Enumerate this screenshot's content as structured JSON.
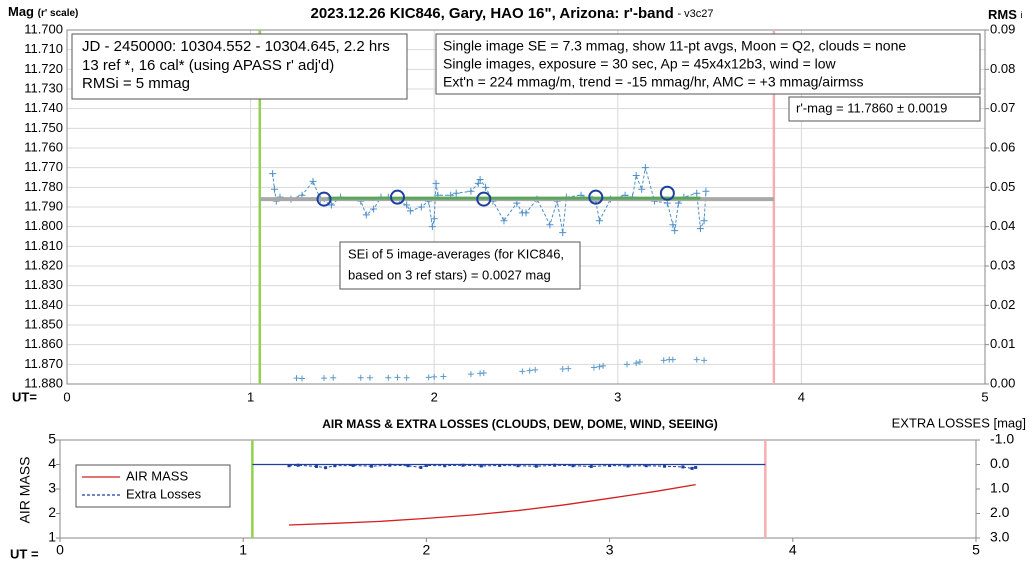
{
  "chart_data": [
    {
      "type": "line",
      "title": "2023.12.26 KIC846, Gary, HAO 16\", Arizona: r'-band",
      "subtitle": "- v3c27",
      "ylabel": "Mag",
      "ylabel_note": "(r' scale)",
      "y2label": "RMS",
      "y2label_sub": "i",
      "xlabel": "UT=",
      "xlim": [
        0,
        5
      ],
      "xticks": [
        0,
        1,
        2,
        3,
        4,
        5
      ],
      "ylim": [
        11.88,
        11.7
      ],
      "yticks": [
        {
          "value": 11.7,
          "label": "11.700"
        },
        {
          "value": 11.71,
          "label": "11.710"
        },
        {
          "value": 11.72,
          "label": "11.720"
        },
        {
          "value": 11.73,
          "label": "11.730"
        },
        {
          "value": 11.74,
          "label": "11.740"
        },
        {
          "value": 11.75,
          "label": "11.750"
        },
        {
          "value": 11.76,
          "label": "11.760"
        },
        {
          "value": 11.77,
          "label": "11.770"
        },
        {
          "value": 11.78,
          "label": "11.780"
        },
        {
          "value": 11.79,
          "label": "11.790"
        },
        {
          "value": 11.8,
          "label": "11.800"
        },
        {
          "value": 11.81,
          "label": "11.810"
        },
        {
          "value": 11.82,
          "label": "11.820"
        },
        {
          "value": 11.83,
          "label": "11.830"
        },
        {
          "value": 11.84,
          "label": "11.840"
        },
        {
          "value": 11.85,
          "label": "11.850"
        },
        {
          "value": 11.86,
          "label": "11.860"
        },
        {
          "value": 11.87,
          "label": "11.870"
        },
        {
          "value": 11.88,
          "label": "11.880"
        }
      ],
      "y2lim": [
        0,
        0.09
      ],
      "y2ticks": [
        {
          "value": 0,
          "label": "0.00"
        },
        {
          "value": 0.01,
          "label": "0.01"
        },
        {
          "value": 0.02,
          "label": "0.02"
        },
        {
          "value": 0.03,
          "label": "0.03"
        },
        {
          "value": 0.04,
          "label": "0.04"
        },
        {
          "value": 0.05,
          "label": "0.05"
        },
        {
          "value": 0.06,
          "label": "0.06"
        },
        {
          "value": 0.07,
          "label": "0.07"
        },
        {
          "value": 0.08,
          "label": "0.08"
        },
        {
          "value": 0.09,
          "label": "0.09"
        }
      ],
      "grid": true,
      "info_box": [
        "JD - 2450000: 10304.552 - 10304.645, 2.2 hrs",
        "13 ref *, 16 cal* (using APASS r' adj'd)",
        "RMSi = 5 mmag"
      ],
      "conditions_box": [
        "Single image SE = 7.3 mmag, show  11-pt avgs, Moon = Q2, clouds = none",
        "Single images, exposure = 30 sec, Ap = 45x4x12b3, wind = low",
        "Ext'n = 224 mmag/m, trend = -15  mmag/hr, AMC = +3 mmag/airmss"
      ],
      "result_box": "r'-mag = 11.7860 ± 0.0019",
      "sei_box": [
        "SEi of 5 image-averages (for KIC846,",
        "based on 3 ref stars) = 0.0027 mag"
      ],
      "vlines": [
        {
          "x": 1.05,
          "color": "#92d050"
        },
        {
          "x": 3.85,
          "color": "#f4b0b0"
        }
      ],
      "series": [
        {
          "color": "#4f8fc8",
          "marker": "plus",
          "dash": true,
          "x": [
            1.12,
            1.13,
            1.14,
            1.16,
            1.22,
            1.28,
            1.34,
            1.38,
            1.44,
            1.49,
            1.6,
            1.63,
            1.67,
            1.71,
            1.75,
            1.85,
            1.87,
            1.93,
            1.97,
            1.99,
            2.0,
            2.01,
            2.02,
            2.09,
            2.12,
            2.2,
            2.24,
            2.25,
            2.28,
            2.32,
            2.38,
            2.45,
            2.48,
            2.5,
            2.56,
            2.63,
            2.67,
            2.7,
            2.72,
            2.8,
            2.86,
            2.88,
            2.9,
            2.96,
            3.04,
            3.08,
            3.1,
            3.13,
            3.15,
            3.2,
            3.27,
            3.3,
            3.31,
            3.33,
            3.36,
            3.43,
            3.45,
            3.47,
            3.48
          ],
          "values": [
            11.773,
            11.781,
            11.787,
            11.785,
            11.786,
            11.784,
            11.777,
            11.786,
            11.789,
            11.785,
            11.787,
            11.794,
            11.791,
            11.785,
            11.785,
            11.789,
            11.792,
            11.79,
            11.787,
            11.8,
            11.796,
            11.778,
            11.784,
            11.784,
            11.783,
            11.782,
            11.778,
            11.776,
            11.78,
            11.787,
            11.797,
            11.788,
            11.793,
            11.793,
            11.786,
            11.799,
            11.787,
            11.803,
            11.785,
            11.784,
            11.786,
            11.787,
            11.797,
            11.786,
            11.784,
            11.785,
            11.774,
            11.781,
            11.77,
            11.787,
            11.788,
            11.799,
            11.802,
            11.788,
            11.785,
            11.783,
            11.801,
            11.797,
            11.782
          ]
        },
        {
          "color": "#a8a8a8",
          "width": 4,
          "x": [
            1.05,
            3.85
          ],
          "values": [
            11.786,
            11.786
          ]
        },
        {
          "color": "#5aa65a",
          "width": 3,
          "x": [
            1.42,
            3.45
          ],
          "values": [
            11.7855,
            11.7855
          ]
        },
        {
          "color": "#1f3f9f",
          "marker": "circle",
          "x": [
            1.4,
            1.8,
            2.27,
            2.88,
            3.27
          ],
          "values": [
            11.786,
            11.785,
            11.786,
            11.785,
            11.783
          ]
        },
        {
          "color": "#5b9bc8",
          "marker": "plus",
          "axis": "y2",
          "size": 3,
          "x": [
            1.25,
            1.28,
            1.4,
            1.45,
            1.6,
            1.65,
            1.75,
            1.8,
            1.85,
            1.97,
            2.0,
            2.05,
            2.2,
            2.25,
            2.27,
            2.48,
            2.52,
            2.55,
            2.7,
            2.73,
            2.87,
            2.9,
            2.92,
            3.05,
            3.1,
            3.12,
            3.25,
            3.28,
            3.3,
            3.43,
            3.47
          ],
          "values": [
            0.0015,
            0.0014,
            0.0015,
            0.0016,
            0.0016,
            0.0016,
            0.0016,
            0.0017,
            0.0016,
            0.0017,
            0.0018,
            0.0019,
            0.0025,
            0.0027,
            0.0028,
            0.0032,
            0.0034,
            0.0036,
            0.0038,
            0.0039,
            0.0042,
            0.0044,
            0.0046,
            0.005,
            0.0053,
            0.0056,
            0.006,
            0.0062,
            0.0062,
            0.0062,
            0.006
          ]
        }
      ]
    },
    {
      "type": "line",
      "title": "AIR MASS & EXTRA LOSSES (CLOUDS, DEW, DOME, WIND, SEEING)",
      "ylabel": "AIR MASS",
      "y2label": "EXTRA LOSSES [mag]",
      "xlabel": "UT =",
      "xlim": [
        0,
        5
      ],
      "xticks": [
        0,
        1,
        2,
        3,
        4,
        5
      ],
      "ylim": [
        1,
        5
      ],
      "yticks": [
        1,
        2,
        3,
        4,
        5
      ],
      "y2lim": [
        3,
        -1
      ],
      "y2ticks": [
        {
          "value": -1,
          "label": "-1.0"
        },
        {
          "value": 0,
          "label": "0.0"
        },
        {
          "value": 1,
          "label": "1.0"
        },
        {
          "value": 2,
          "label": "2.0"
        },
        {
          "value": 3,
          "label": "3.0"
        }
      ],
      "grid": false,
      "legend": "upper left",
      "vlines": [
        {
          "x": 1.05,
          "color": "#92d050"
        },
        {
          "x": 3.85,
          "color": "#f4b0b0"
        }
      ],
      "series": [
        {
          "name": "AIR MASS",
          "color": "#d42020",
          "x": [
            1.25,
            1.5,
            1.75,
            2.0,
            2.25,
            2.5,
            2.75,
            3.0,
            3.25,
            3.47
          ],
          "values": [
            1.53,
            1.6,
            1.68,
            1.8,
            1.94,
            2.12,
            2.35,
            2.62,
            2.9,
            3.18
          ]
        },
        {
          "name": "Extra Losses",
          "color": "#1f3f9f",
          "dash": true,
          "axis": "y2",
          "marker": "dot",
          "x": [
            1.25,
            1.3,
            1.4,
            1.45,
            1.5,
            1.6,
            1.7,
            1.8,
            1.9,
            1.97,
            2.0,
            2.1,
            2.2,
            2.3,
            2.4,
            2.5,
            2.6,
            2.7,
            2.8,
            2.9,
            3.0,
            3.1,
            3.2,
            3.3,
            3.4,
            3.45,
            3.47
          ],
          "values": [
            0.05,
            0.03,
            0.08,
            0.13,
            0.05,
            0.04,
            0.07,
            0.03,
            0.05,
            0.12,
            0.04,
            0.05,
            0.03,
            0.06,
            0.04,
            0.05,
            0.07,
            0.03,
            0.05,
            0.08,
            0.04,
            0.06,
            0.05,
            0.07,
            0.1,
            0.16,
            0.12
          ]
        },
        {
          "color": "#1f3f9f",
          "axis": "y2",
          "x": [
            1.05,
            3.85
          ],
          "values": [
            0,
            0
          ]
        }
      ]
    }
  ]
}
